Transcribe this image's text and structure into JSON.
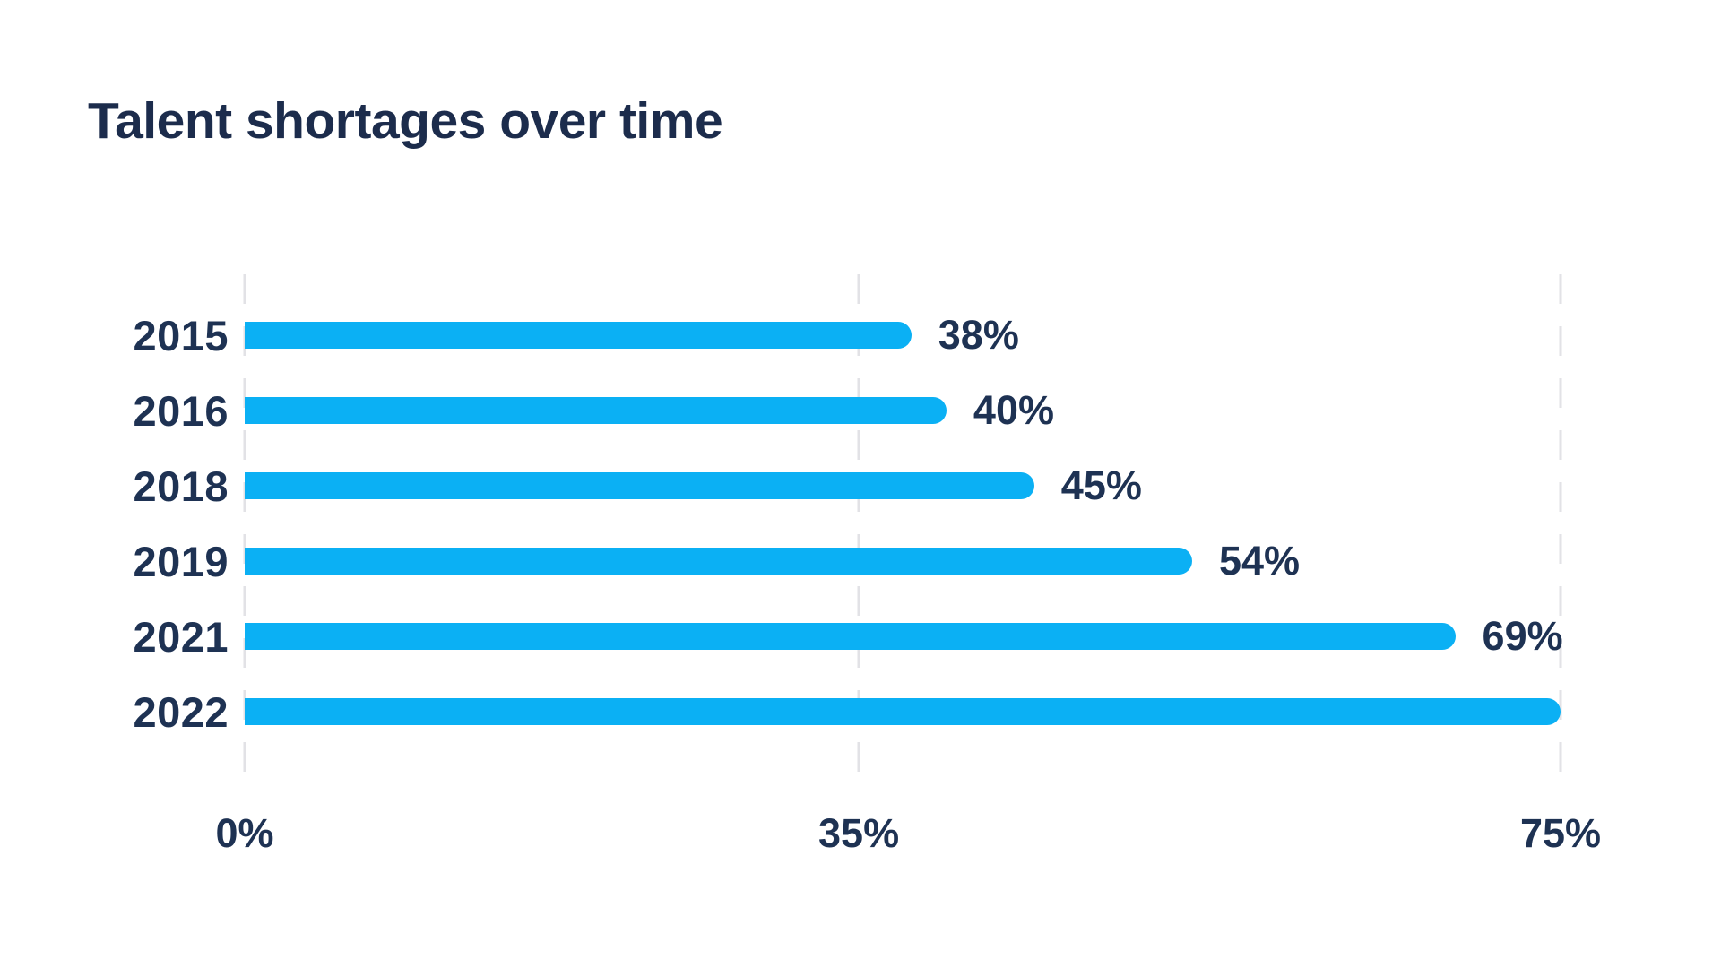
{
  "title": "Talent shortages over time",
  "chart_data": {
    "type": "bar",
    "orientation": "horizontal",
    "title": "Talent shortages over time",
    "categories": [
      "2015",
      "2016",
      "2018",
      "2019",
      "2021",
      "2022"
    ],
    "values": [
      38,
      40,
      45,
      54,
      69,
      75
    ],
    "value_labels": [
      "38%",
      "40%",
      "45%",
      "54%",
      "69%",
      ""
    ],
    "xlabel": "",
    "ylabel": "",
    "xlim": [
      0,
      75
    ],
    "x_ticks": [
      {
        "value": 0,
        "label": "0%"
      },
      {
        "value": 35,
        "label": "35%"
      },
      {
        "value": 75,
        "label": "75%"
      }
    ],
    "grid": "vertical dashed gridlines at x ticks",
    "legend": "none",
    "colors": {
      "bar": "#0bb0f4",
      "title_text": "#1c2c4c",
      "label_text": "#1e3253",
      "gridline": "#e2e2e6",
      "background": "#ffffff"
    }
  }
}
